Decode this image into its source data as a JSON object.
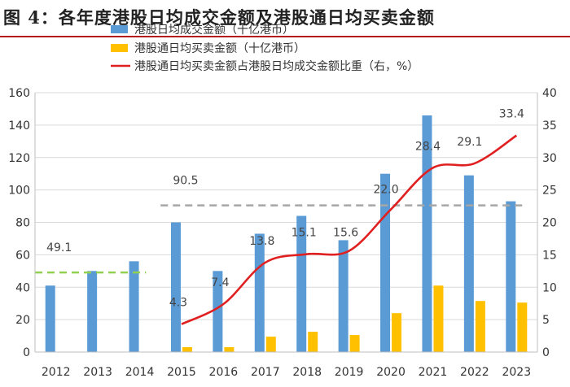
{
  "title": "图 4：各年度港股日均成交金额及港股通日均买卖金额",
  "chart_data": {
    "type": "bar",
    "title": "图 4：各年度港股日均成交金额及港股通日均买卖金额",
    "categories": [
      "2012",
      "2013",
      "2014",
      "2015",
      "2016",
      "2017",
      "2018",
      "2019",
      "2020",
      "2021",
      "2022",
      "2023"
    ],
    "series": [
      {
        "name": "港股日均成交金额（十亿港币）",
        "type": "bar",
        "axis": "left",
        "color": "#5b9bd5",
        "values": [
          41,
          50,
          56,
          80,
          50,
          73,
          84,
          69,
          110,
          146,
          109,
          93
        ]
      },
      {
        "name": "港股通日均买卖金额（十亿港币）",
        "type": "bar",
        "axis": "left",
        "color": "#ffc000",
        "values": [
          null,
          null,
          null,
          3,
          3,
          9.5,
          12.5,
          10.5,
          24,
          41,
          31.5,
          30.5
        ]
      },
      {
        "name": "港股通日均买卖金额占港股日均成交金额比重（右，%）",
        "type": "line",
        "axis": "right",
        "color": "#e02020",
        "values": [
          null,
          null,
          null,
          4.3,
          7.4,
          13.8,
          15.1,
          15.6,
          22.0,
          28.4,
          29.1,
          33.4
        ]
      }
    ],
    "data_labels": [
      {
        "text": "49.1",
        "category": "2012"
      },
      {
        "text": "90.5",
        "category": "2015"
      },
      {
        "text": "4.3",
        "category": "2015"
      },
      {
        "text": "7.4",
        "category": "2016"
      },
      {
        "text": "13.8",
        "category": "2017"
      },
      {
        "text": "15.1",
        "category": "2018"
      },
      {
        "text": "15.6",
        "category": "2019"
      },
      {
        "text": "22.0",
        "category": "2020"
      },
      {
        "text": "28.4",
        "category": "2021"
      },
      {
        "text": "29.1",
        "category": "2022"
      },
      {
        "text": "33.4",
        "category": "2023"
      }
    ],
    "reference_lines": [
      {
        "value": 49.1,
        "axis": "left",
        "from": "2012",
        "to": "2014",
        "color": "#92d050",
        "style": "dashed"
      },
      {
        "value": 90.5,
        "axis": "left",
        "from": "2015",
        "to": "2023",
        "color": "#a6a6a6",
        "style": "dashed"
      }
    ],
    "ylim": [
      0,
      160
    ],
    "yticks": [
      0,
      20,
      40,
      60,
      80,
      100,
      120,
      140,
      160
    ],
    "y2lim": [
      0,
      40
    ],
    "y2ticks": [
      0,
      5,
      10,
      15,
      20,
      25,
      30,
      35,
      40
    ],
    "legend_position": "top-left"
  }
}
